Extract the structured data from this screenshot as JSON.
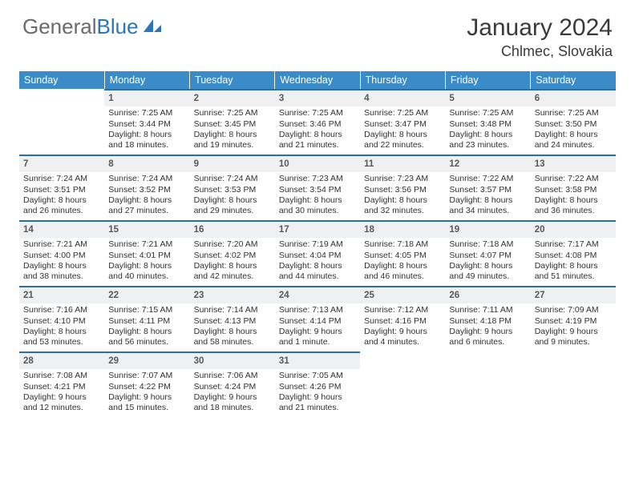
{
  "logo": {
    "word1": "General",
    "word2": "Blue"
  },
  "title": "January 2024",
  "subtitle": "Chlmec, Slovakia",
  "colors": {
    "header_bg": "#3b8bc9",
    "daynum_bg": "#eef0f2",
    "row_border": "#2a6ea8",
    "logo_gray": "#6a6a6a",
    "logo_blue": "#2a76b8"
  },
  "weekdays": [
    "Sunday",
    "Monday",
    "Tuesday",
    "Wednesday",
    "Thursday",
    "Friday",
    "Saturday"
  ],
  "weeks": [
    [
      {
        "num": "",
        "lines": [
          "",
          "",
          "",
          ""
        ],
        "empty": true
      },
      {
        "num": "1",
        "lines": [
          "Sunrise: 7:25 AM",
          "Sunset: 3:44 PM",
          "Daylight: 8 hours",
          "and 18 minutes."
        ]
      },
      {
        "num": "2",
        "lines": [
          "Sunrise: 7:25 AM",
          "Sunset: 3:45 PM",
          "Daylight: 8 hours",
          "and 19 minutes."
        ]
      },
      {
        "num": "3",
        "lines": [
          "Sunrise: 7:25 AM",
          "Sunset: 3:46 PM",
          "Daylight: 8 hours",
          "and 21 minutes."
        ]
      },
      {
        "num": "4",
        "lines": [
          "Sunrise: 7:25 AM",
          "Sunset: 3:47 PM",
          "Daylight: 8 hours",
          "and 22 minutes."
        ]
      },
      {
        "num": "5",
        "lines": [
          "Sunrise: 7:25 AM",
          "Sunset: 3:48 PM",
          "Daylight: 8 hours",
          "and 23 minutes."
        ]
      },
      {
        "num": "6",
        "lines": [
          "Sunrise: 7:25 AM",
          "Sunset: 3:50 PM",
          "Daylight: 8 hours",
          "and 24 minutes."
        ]
      }
    ],
    [
      {
        "num": "7",
        "lines": [
          "Sunrise: 7:24 AM",
          "Sunset: 3:51 PM",
          "Daylight: 8 hours",
          "and 26 minutes."
        ]
      },
      {
        "num": "8",
        "lines": [
          "Sunrise: 7:24 AM",
          "Sunset: 3:52 PM",
          "Daylight: 8 hours",
          "and 27 minutes."
        ]
      },
      {
        "num": "9",
        "lines": [
          "Sunrise: 7:24 AM",
          "Sunset: 3:53 PM",
          "Daylight: 8 hours",
          "and 29 minutes."
        ]
      },
      {
        "num": "10",
        "lines": [
          "Sunrise: 7:23 AM",
          "Sunset: 3:54 PM",
          "Daylight: 8 hours",
          "and 30 minutes."
        ]
      },
      {
        "num": "11",
        "lines": [
          "Sunrise: 7:23 AM",
          "Sunset: 3:56 PM",
          "Daylight: 8 hours",
          "and 32 minutes."
        ]
      },
      {
        "num": "12",
        "lines": [
          "Sunrise: 7:22 AM",
          "Sunset: 3:57 PM",
          "Daylight: 8 hours",
          "and 34 minutes."
        ]
      },
      {
        "num": "13",
        "lines": [
          "Sunrise: 7:22 AM",
          "Sunset: 3:58 PM",
          "Daylight: 8 hours",
          "and 36 minutes."
        ]
      }
    ],
    [
      {
        "num": "14",
        "lines": [
          "Sunrise: 7:21 AM",
          "Sunset: 4:00 PM",
          "Daylight: 8 hours",
          "and 38 minutes."
        ]
      },
      {
        "num": "15",
        "lines": [
          "Sunrise: 7:21 AM",
          "Sunset: 4:01 PM",
          "Daylight: 8 hours",
          "and 40 minutes."
        ]
      },
      {
        "num": "16",
        "lines": [
          "Sunrise: 7:20 AM",
          "Sunset: 4:02 PM",
          "Daylight: 8 hours",
          "and 42 minutes."
        ]
      },
      {
        "num": "17",
        "lines": [
          "Sunrise: 7:19 AM",
          "Sunset: 4:04 PM",
          "Daylight: 8 hours",
          "and 44 minutes."
        ]
      },
      {
        "num": "18",
        "lines": [
          "Sunrise: 7:18 AM",
          "Sunset: 4:05 PM",
          "Daylight: 8 hours",
          "and 46 minutes."
        ]
      },
      {
        "num": "19",
        "lines": [
          "Sunrise: 7:18 AM",
          "Sunset: 4:07 PM",
          "Daylight: 8 hours",
          "and 49 minutes."
        ]
      },
      {
        "num": "20",
        "lines": [
          "Sunrise: 7:17 AM",
          "Sunset: 4:08 PM",
          "Daylight: 8 hours",
          "and 51 minutes."
        ]
      }
    ],
    [
      {
        "num": "21",
        "lines": [
          "Sunrise: 7:16 AM",
          "Sunset: 4:10 PM",
          "Daylight: 8 hours",
          "and 53 minutes."
        ]
      },
      {
        "num": "22",
        "lines": [
          "Sunrise: 7:15 AM",
          "Sunset: 4:11 PM",
          "Daylight: 8 hours",
          "and 56 minutes."
        ]
      },
      {
        "num": "23",
        "lines": [
          "Sunrise: 7:14 AM",
          "Sunset: 4:13 PM",
          "Daylight: 8 hours",
          "and 58 minutes."
        ]
      },
      {
        "num": "24",
        "lines": [
          "Sunrise: 7:13 AM",
          "Sunset: 4:14 PM",
          "Daylight: 9 hours",
          "and 1 minute."
        ]
      },
      {
        "num": "25",
        "lines": [
          "Sunrise: 7:12 AM",
          "Sunset: 4:16 PM",
          "Daylight: 9 hours",
          "and 4 minutes."
        ]
      },
      {
        "num": "26",
        "lines": [
          "Sunrise: 7:11 AM",
          "Sunset: 4:18 PM",
          "Daylight: 9 hours",
          "and 6 minutes."
        ]
      },
      {
        "num": "27",
        "lines": [
          "Sunrise: 7:09 AM",
          "Sunset: 4:19 PM",
          "Daylight: 9 hours",
          "and 9 minutes."
        ]
      }
    ],
    [
      {
        "num": "28",
        "lines": [
          "Sunrise: 7:08 AM",
          "Sunset: 4:21 PM",
          "Daylight: 9 hours",
          "and 12 minutes."
        ]
      },
      {
        "num": "29",
        "lines": [
          "Sunrise: 7:07 AM",
          "Sunset: 4:22 PM",
          "Daylight: 9 hours",
          "and 15 minutes."
        ]
      },
      {
        "num": "30",
        "lines": [
          "Sunrise: 7:06 AM",
          "Sunset: 4:24 PM",
          "Daylight: 9 hours",
          "and 18 minutes."
        ]
      },
      {
        "num": "31",
        "lines": [
          "Sunrise: 7:05 AM",
          "Sunset: 4:26 PM",
          "Daylight: 9 hours",
          "and 21 minutes."
        ]
      },
      {
        "num": "",
        "lines": [
          "",
          "",
          "",
          ""
        ],
        "empty": true
      },
      {
        "num": "",
        "lines": [
          "",
          "",
          "",
          ""
        ],
        "empty": true
      },
      {
        "num": "",
        "lines": [
          "",
          "",
          "",
          ""
        ],
        "empty": true
      }
    ]
  ]
}
